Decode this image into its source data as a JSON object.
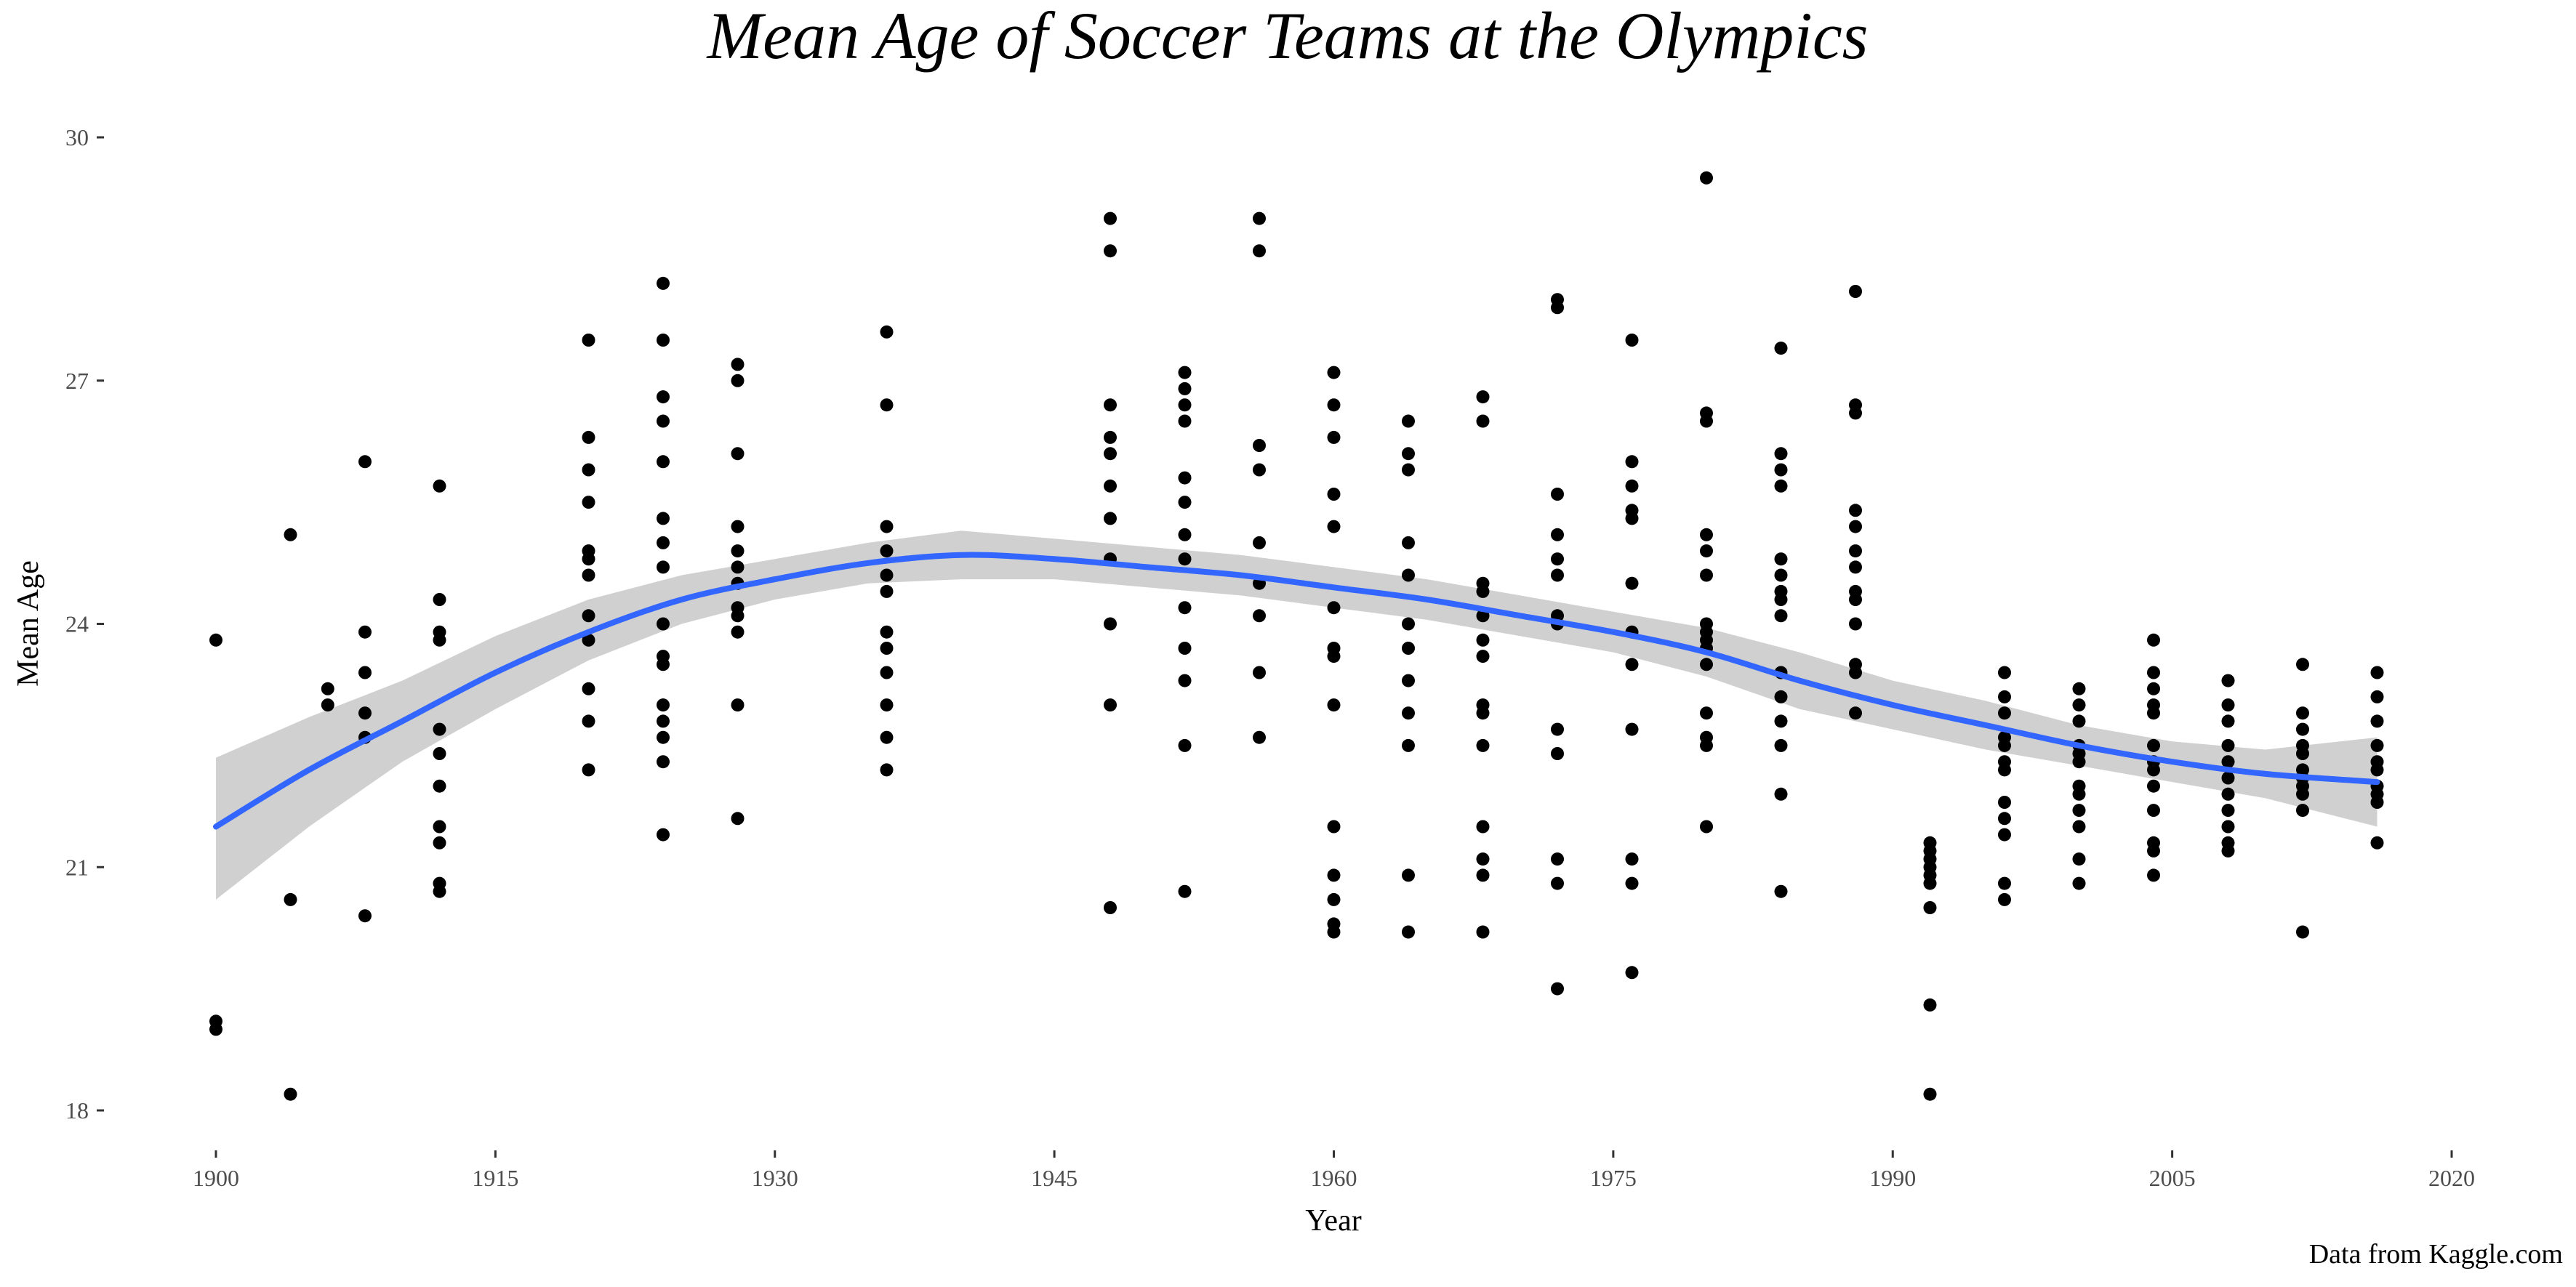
{
  "chart_data": {
    "type": "scatter",
    "title": "Mean Age of Soccer Teams at the Olympics",
    "xlabel": "Year",
    "ylabel": "Mean Age",
    "caption": "Data from Kaggle.com",
    "xlim": [
      1900,
      2020
    ],
    "ylim": [
      18,
      30
    ],
    "xticks": [
      1900,
      1915,
      1930,
      1945,
      1960,
      1975,
      1990,
      2005,
      2020
    ],
    "yticks": [
      18,
      21,
      24,
      27,
      30
    ],
    "grid": false,
    "colors": {
      "points": "#000000",
      "smooth_line": "#3366FF",
      "ribbon": "#BEBEBE"
    },
    "points": [
      [
        1900,
        23.8
      ],
      [
        1900,
        19.1
      ],
      [
        1900,
        19.0
      ],
      [
        1904,
        25.1
      ],
      [
        1904,
        20.6
      ],
      [
        1904,
        18.2
      ],
      [
        1906,
        23.2
      ],
      [
        1906,
        23.0
      ],
      [
        1908,
        26.0
      ],
      [
        1908,
        23.9
      ],
      [
        1908,
        23.4
      ],
      [
        1908,
        22.9
      ],
      [
        1908,
        22.6
      ],
      [
        1908,
        20.4
      ],
      [
        1912,
        25.7
      ],
      [
        1912,
        24.3
      ],
      [
        1912,
        23.9
      ],
      [
        1912,
        23.8
      ],
      [
        1912,
        22.7
      ],
      [
        1912,
        22.4
      ],
      [
        1912,
        22.0
      ],
      [
        1912,
        21.5
      ],
      [
        1912,
        21.3
      ],
      [
        1912,
        20.8
      ],
      [
        1912,
        20.7
      ],
      [
        1920,
        27.5
      ],
      [
        1920,
        26.3
      ],
      [
        1920,
        25.9
      ],
      [
        1920,
        25.5
      ],
      [
        1920,
        24.9
      ],
      [
        1920,
        24.8
      ],
      [
        1920,
        24.6
      ],
      [
        1920,
        24.1
      ],
      [
        1920,
        23.8
      ],
      [
        1920,
        23.2
      ],
      [
        1920,
        22.8
      ],
      [
        1920,
        22.2
      ],
      [
        1924,
        28.2
      ],
      [
        1924,
        27.5
      ],
      [
        1924,
        26.8
      ],
      [
        1924,
        26.5
      ],
      [
        1924,
        26.0
      ],
      [
        1924,
        25.3
      ],
      [
        1924,
        25.0
      ],
      [
        1924,
        24.7
      ],
      [
        1924,
        24.0
      ],
      [
        1924,
        23.6
      ],
      [
        1924,
        23.5
      ],
      [
        1924,
        23.0
      ],
      [
        1924,
        22.8
      ],
      [
        1924,
        22.6
      ],
      [
        1924,
        22.3
      ],
      [
        1924,
        21.4
      ],
      [
        1928,
        27.2
      ],
      [
        1928,
        27.0
      ],
      [
        1928,
        26.1
      ],
      [
        1928,
        25.2
      ],
      [
        1928,
        24.9
      ],
      [
        1928,
        24.7
      ],
      [
        1928,
        24.5
      ],
      [
        1928,
        24.2
      ],
      [
        1928,
        24.1
      ],
      [
        1928,
        23.9
      ],
      [
        1928,
        23.0
      ],
      [
        1928,
        21.6
      ],
      [
        1936,
        27.6
      ],
      [
        1936,
        26.7
      ],
      [
        1936,
        25.2
      ],
      [
        1936,
        24.9
      ],
      [
        1936,
        24.6
      ],
      [
        1936,
        24.4
      ],
      [
        1936,
        23.9
      ],
      [
        1936,
        23.7
      ],
      [
        1936,
        23.4
      ],
      [
        1936,
        23.0
      ],
      [
        1936,
        22.6
      ],
      [
        1936,
        22.2
      ],
      [
        1948,
        29.0
      ],
      [
        1948,
        28.6
      ],
      [
        1948,
        26.7
      ],
      [
        1948,
        26.3
      ],
      [
        1948,
        26.1
      ],
      [
        1948,
        25.7
      ],
      [
        1948,
        25.3
      ],
      [
        1948,
        24.8
      ],
      [
        1948,
        24.0
      ],
      [
        1948,
        23.0
      ],
      [
        1948,
        20.5
      ],
      [
        1952,
        27.1
      ],
      [
        1952,
        26.9
      ],
      [
        1952,
        26.7
      ],
      [
        1952,
        26.5
      ],
      [
        1952,
        25.8
      ],
      [
        1952,
        25.5
      ],
      [
        1952,
        25.1
      ],
      [
        1952,
        24.8
      ],
      [
        1952,
        24.2
      ],
      [
        1952,
        23.7
      ],
      [
        1952,
        23.3
      ],
      [
        1952,
        22.5
      ],
      [
        1952,
        20.7
      ],
      [
        1956,
        29.0
      ],
      [
        1956,
        28.6
      ],
      [
        1956,
        26.2
      ],
      [
        1956,
        25.9
      ],
      [
        1956,
        25.0
      ],
      [
        1956,
        24.5
      ],
      [
        1956,
        24.1
      ],
      [
        1956,
        23.4
      ],
      [
        1956,
        22.6
      ],
      [
        1960,
        27.1
      ],
      [
        1960,
        26.7
      ],
      [
        1960,
        26.3
      ],
      [
        1960,
        25.6
      ],
      [
        1960,
        25.2
      ],
      [
        1960,
        24.2
      ],
      [
        1960,
        23.7
      ],
      [
        1960,
        23.6
      ],
      [
        1960,
        23.0
      ],
      [
        1960,
        21.5
      ],
      [
        1960,
        20.9
      ],
      [
        1960,
        20.6
      ],
      [
        1960,
        20.3
      ],
      [
        1960,
        20.2
      ],
      [
        1964,
        26.5
      ],
      [
        1964,
        26.1
      ],
      [
        1964,
        25.9
      ],
      [
        1964,
        25.0
      ],
      [
        1964,
        24.6
      ],
      [
        1964,
        24.0
      ],
      [
        1964,
        23.7
      ],
      [
        1964,
        23.3
      ],
      [
        1964,
        22.9
      ],
      [
        1964,
        22.5
      ],
      [
        1964,
        20.9
      ],
      [
        1964,
        20.2
      ],
      [
        1968,
        26.8
      ],
      [
        1968,
        26.5
      ],
      [
        1968,
        24.5
      ],
      [
        1968,
        24.4
      ],
      [
        1968,
        24.1
      ],
      [
        1968,
        23.8
      ],
      [
        1968,
        23.6
      ],
      [
        1968,
        23.0
      ],
      [
        1968,
        22.9
      ],
      [
        1968,
        22.5
      ],
      [
        1968,
        21.5
      ],
      [
        1968,
        21.1
      ],
      [
        1968,
        20.9
      ],
      [
        1968,
        20.2
      ],
      [
        1972,
        28.0
      ],
      [
        1972,
        27.9
      ],
      [
        1972,
        25.6
      ],
      [
        1972,
        25.1
      ],
      [
        1972,
        24.8
      ],
      [
        1972,
        24.6
      ],
      [
        1972,
        24.1
      ],
      [
        1972,
        24.0
      ],
      [
        1972,
        22.7
      ],
      [
        1972,
        22.4
      ],
      [
        1972,
        21.1
      ],
      [
        1972,
        20.8
      ],
      [
        1972,
        19.5
      ],
      [
        1976,
        27.5
      ],
      [
        1976,
        26.0
      ],
      [
        1976,
        25.7
      ],
      [
        1976,
        25.4
      ],
      [
        1976,
        25.3
      ],
      [
        1976,
        24.5
      ],
      [
        1976,
        23.9
      ],
      [
        1976,
        23.5
      ],
      [
        1976,
        22.7
      ],
      [
        1976,
        21.1
      ],
      [
        1976,
        20.8
      ],
      [
        1976,
        19.7
      ],
      [
        1980,
        29.5
      ],
      [
        1980,
        26.6
      ],
      [
        1980,
        26.5
      ],
      [
        1980,
        25.1
      ],
      [
        1980,
        24.9
      ],
      [
        1980,
        24.6
      ],
      [
        1980,
        24.0
      ],
      [
        1980,
        23.9
      ],
      [
        1980,
        23.8
      ],
      [
        1980,
        23.7
      ],
      [
        1980,
        23.5
      ],
      [
        1980,
        22.9
      ],
      [
        1980,
        22.6
      ],
      [
        1980,
        22.5
      ],
      [
        1980,
        21.5
      ],
      [
        1984,
        27.4
      ],
      [
        1984,
        26.1
      ],
      [
        1984,
        25.9
      ],
      [
        1984,
        25.7
      ],
      [
        1984,
        24.8
      ],
      [
        1984,
        24.6
      ],
      [
        1984,
        24.4
      ],
      [
        1984,
        24.3
      ],
      [
        1984,
        24.1
      ],
      [
        1984,
        23.4
      ],
      [
        1984,
        23.1
      ],
      [
        1984,
        22.8
      ],
      [
        1984,
        22.5
      ],
      [
        1984,
        21.9
      ],
      [
        1984,
        20.7
      ],
      [
        1988,
        28.1
      ],
      [
        1988,
        26.7
      ],
      [
        1988,
        26.6
      ],
      [
        1988,
        25.4
      ],
      [
        1988,
        25.2
      ],
      [
        1988,
        24.9
      ],
      [
        1988,
        24.7
      ],
      [
        1988,
        24.4
      ],
      [
        1988,
        24.3
      ],
      [
        1988,
        24.0
      ],
      [
        1988,
        23.5
      ],
      [
        1988,
        23.4
      ],
      [
        1988,
        22.9
      ],
      [
        1992,
        21.3
      ],
      [
        1992,
        21.2
      ],
      [
        1992,
        21.1
      ],
      [
        1992,
        21.0
      ],
      [
        1992,
        20.9
      ],
      [
        1992,
        20.8
      ],
      [
        1992,
        20.5
      ],
      [
        1992,
        19.3
      ],
      [
        1992,
        18.2
      ],
      [
        1996,
        23.4
      ],
      [
        1996,
        23.1
      ],
      [
        1996,
        22.9
      ],
      [
        1996,
        22.6
      ],
      [
        1996,
        22.5
      ],
      [
        1996,
        22.3
      ],
      [
        1996,
        22.2
      ],
      [
        1996,
        21.8
      ],
      [
        1996,
        21.6
      ],
      [
        1996,
        21.4
      ],
      [
        1996,
        20.8
      ],
      [
        1996,
        20.6
      ],
      [
        2000,
        23.2
      ],
      [
        2000,
        23.0
      ],
      [
        2000,
        22.8
      ],
      [
        2000,
        22.5
      ],
      [
        2000,
        22.4
      ],
      [
        2000,
        22.3
      ],
      [
        2000,
        22.0
      ],
      [
        2000,
        21.9
      ],
      [
        2000,
        21.7
      ],
      [
        2000,
        21.5
      ],
      [
        2000,
        21.1
      ],
      [
        2000,
        20.8
      ],
      [
        2004,
        23.8
      ],
      [
        2004,
        23.4
      ],
      [
        2004,
        23.2
      ],
      [
        2004,
        23.0
      ],
      [
        2004,
        22.9
      ],
      [
        2004,
        22.5
      ],
      [
        2004,
        22.3
      ],
      [
        2004,
        22.2
      ],
      [
        2004,
        22.0
      ],
      [
        2004,
        21.7
      ],
      [
        2004,
        21.3
      ],
      [
        2004,
        21.2
      ],
      [
        2004,
        20.9
      ],
      [
        2008,
        23.3
      ],
      [
        2008,
        23.0
      ],
      [
        2008,
        22.8
      ],
      [
        2008,
        22.5
      ],
      [
        2008,
        22.3
      ],
      [
        2008,
        22.1
      ],
      [
        2008,
        21.9
      ],
      [
        2008,
        21.7
      ],
      [
        2008,
        21.5
      ],
      [
        2008,
        21.3
      ],
      [
        2008,
        21.2
      ],
      [
        2012,
        23.5
      ],
      [
        2012,
        22.9
      ],
      [
        2012,
        22.7
      ],
      [
        2012,
        22.5
      ],
      [
        2012,
        22.4
      ],
      [
        2012,
        22.2
      ],
      [
        2012,
        22.1
      ],
      [
        2012,
        22.0
      ],
      [
        2012,
        21.9
      ],
      [
        2012,
        21.7
      ],
      [
        2012,
        20.2
      ],
      [
        2016,
        23.4
      ],
      [
        2016,
        23.1
      ],
      [
        2016,
        22.8
      ],
      [
        2016,
        22.5
      ],
      [
        2016,
        22.3
      ],
      [
        2016,
        22.2
      ],
      [
        2016,
        22.0
      ],
      [
        2016,
        21.9
      ],
      [
        2016,
        21.8
      ],
      [
        2016,
        21.3
      ]
    ],
    "smooth": {
      "x": [
        1900,
        1905,
        1910,
        1915,
        1920,
        1925,
        1930,
        1935,
        1940,
        1945,
        1950,
        1955,
        1960,
        1965,
        1970,
        1975,
        1980,
        1985,
        1990,
        1995,
        2000,
        2005,
        2010,
        2016
      ],
      "y": [
        21.5,
        22.2,
        22.8,
        23.4,
        23.9,
        24.3,
        24.55,
        24.75,
        24.85,
        24.8,
        24.7,
        24.6,
        24.45,
        24.3,
        24.1,
        23.9,
        23.65,
        23.3,
        23.0,
        22.75,
        22.5,
        22.3,
        22.15,
        22.05
      ],
      "lower": [
        20.6,
        21.5,
        22.3,
        22.95,
        23.55,
        24.0,
        24.3,
        24.5,
        24.55,
        24.55,
        24.45,
        24.35,
        24.2,
        24.05,
        23.85,
        23.65,
        23.35,
        22.95,
        22.7,
        22.45,
        22.25,
        22.05,
        21.85,
        21.5
      ],
      "upper": [
        22.35,
        22.85,
        23.3,
        23.85,
        24.3,
        24.6,
        24.8,
        25.0,
        25.15,
        25.05,
        24.95,
        24.85,
        24.7,
        24.55,
        24.35,
        24.15,
        23.95,
        23.65,
        23.3,
        23.05,
        22.75,
        22.55,
        22.45,
        22.6
      ]
    }
  }
}
